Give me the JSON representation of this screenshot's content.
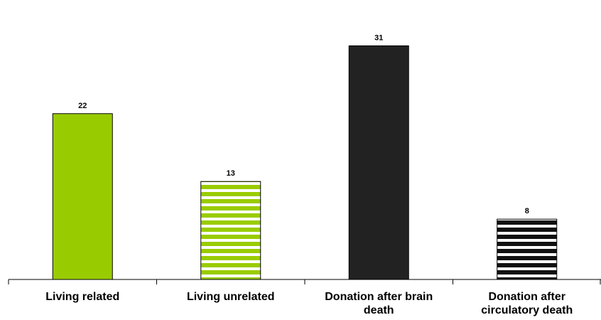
{
  "chart_data": {
    "type": "bar",
    "categories": [
      [
        "Living related"
      ],
      [
        "Living unrelated"
      ],
      [
        "Donation after brain",
        "death"
      ],
      [
        "Donation after",
        "circulatory death"
      ]
    ],
    "values": [
      22,
      13,
      31,
      8
    ],
    "bar_styles": [
      {
        "fill": "#99cc00",
        "pattern": "solid"
      },
      {
        "fill": "#99cc00",
        "pattern": "horizontal-stripes"
      },
      {
        "fill": "#222222",
        "pattern": "solid"
      },
      {
        "fill": "#111111",
        "pattern": "horizontal-stripes"
      }
    ],
    "ylim": [
      0,
      33
    ],
    "grid": false,
    "title": "",
    "xlabel": "",
    "ylabel": ""
  }
}
